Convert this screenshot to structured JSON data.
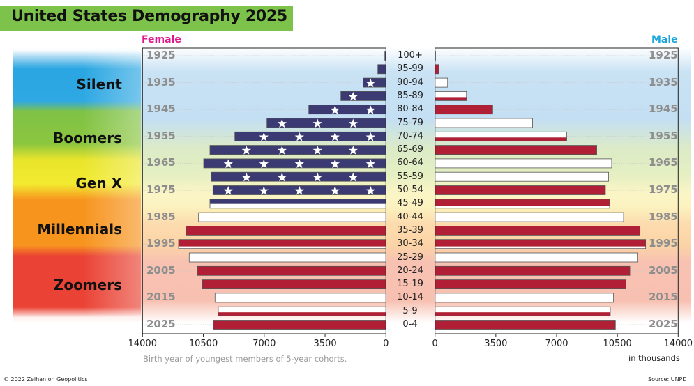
{
  "title": "United States Demography 2025",
  "female_label": "Female",
  "male_label": "Male",
  "generations": [
    "Silent",
    "Boomers",
    "Gen X",
    "Millennials",
    "Zoomers"
  ],
  "footer": {
    "copyright": "© 2022 Zeihan on Geopolitics",
    "source": "Source: UNPD"
  },
  "colors": {
    "navy": "#3b3a72",
    "red": "#b01f35",
    "white": "#ffffff",
    "female": "#e0168c",
    "male": "#1aa6dc",
    "title_bg": "#7dc24b"
  },
  "chart_data": {
    "type": "bar",
    "subtype": "population-pyramid",
    "title": "United States Demography 2025",
    "categories": [
      "100+",
      "95-99",
      "90-94",
      "85-89",
      "80-84",
      "75-79",
      "70-74",
      "65-69",
      "60-64",
      "55-59",
      "50-54",
      "45-49",
      "40-44",
      "35-39",
      "30-34",
      "25-29",
      "20-24",
      "15-19",
      "10-14",
      "5-9",
      "0-4"
    ],
    "birth_year_labels": [
      "1925",
      "1935",
      "1945",
      "1955",
      "1965",
      "1975",
      "1985",
      "1995",
      "2005",
      "2015",
      "2025"
    ],
    "xlabel_left": "Birth year of youngest members of 5-year cohorts.",
    "xlabel_right": "in thousands",
    "xlim": [
      0,
      14000
    ],
    "female_ticks": [
      "14000",
      "10500",
      "7000",
      "3500",
      "0"
    ],
    "male_ticks": [
      "0",
      "3500",
      "7000",
      "10500",
      "14000"
    ],
    "grid": "dotted at labeled birth years",
    "series": [
      {
        "name": "Female",
        "values": [
          64,
          465,
          1308,
          2592,
          4437,
          6844,
          8689,
          10121,
          10482,
          10041,
          9948,
          10121,
          10775,
          11485,
          11926,
          11312,
          10831,
          10550,
          9828,
          9640,
          9920
        ],
        "fills": [
          "navy",
          "navy",
          "navy",
          "navy",
          "navy",
          "navy",
          "navy",
          "navy",
          "navy",
          "navy",
          "navy",
          "navy-white",
          "white",
          "red",
          "red-white",
          "white",
          "red",
          "red",
          "white",
          "white-red",
          "red"
        ]
      },
      {
        "name": "Male",
        "values": [
          30,
          213,
          723,
          1807,
          3317,
          5607,
          7574,
          9301,
          10160,
          9984,
          9799,
          10040,
          10843,
          11791,
          12112,
          11631,
          11205,
          10976,
          10265,
          10080,
          10373
        ],
        "fills": [
          "red",
          "red",
          "white",
          "white-red",
          "red",
          "white",
          "white-red",
          "red",
          "white",
          "white",
          "red",
          "red-white",
          "white",
          "red",
          "red-white",
          "white",
          "red",
          "red",
          "white",
          "white-red",
          "red"
        ]
      }
    ]
  }
}
